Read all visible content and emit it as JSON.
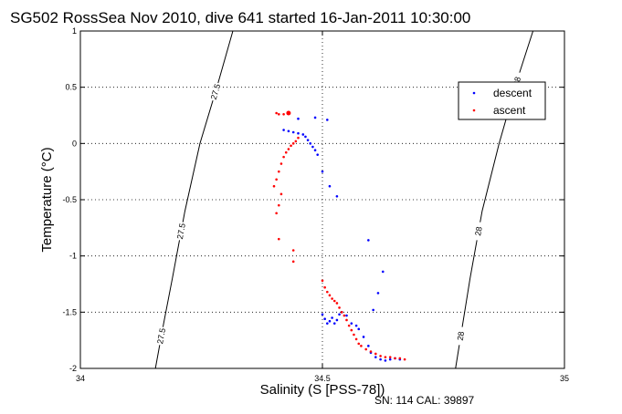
{
  "chart_data": {
    "type": "scatter",
    "title": "SG502 RossSea Nov 2010, dive 641 started 16-Jan-2011 10:30:00",
    "xlabel": "Salinity (S [PSS-78])",
    "ylabel": "Temperature (°C)",
    "xlim": [
      34,
      35
    ],
    "ylim": [
      -2,
      1
    ],
    "xticks": [
      "34",
      "34.5",
      "35"
    ],
    "yticks": [
      "-2",
      "-1.5",
      "-1",
      "-0.5",
      "0",
      "0.5",
      "1"
    ],
    "grid": "dotted",
    "legend": "top-right",
    "footnote": "SN: 114  CAL: 39897",
    "contour_labels": [
      "27.5",
      "28"
    ],
    "contours": [
      {
        "level": "27.5",
        "points": [
          [
            34.155,
            -2
          ],
          [
            34.172,
            -1.6
          ],
          [
            34.19,
            -1.2
          ],
          [
            34.216,
            -0.6
          ],
          [
            34.247,
            0
          ],
          [
            34.282,
            0.5
          ],
          [
            34.315,
            1
          ]
        ]
      },
      {
        "level": "28",
        "points": [
          [
            34.775,
            -2
          ],
          [
            34.79,
            -1.6
          ],
          [
            34.805,
            -1.2
          ],
          [
            34.83,
            -0.6
          ],
          [
            34.865,
            0
          ],
          [
            34.905,
            0.6
          ],
          [
            34.935,
            1
          ]
        ]
      }
    ],
    "series": [
      {
        "name": "descent",
        "color": "#0000ff",
        "points": [
          [
            34.42,
            0.12
          ],
          [
            34.43,
            0.11
          ],
          [
            34.44,
            0.1
          ],
          [
            34.45,
            0.09
          ],
          [
            34.46,
            0.08
          ],
          [
            34.465,
            0.06
          ],
          [
            34.47,
            0.03
          ],
          [
            34.475,
            0.0
          ],
          [
            34.48,
            -0.03
          ],
          [
            34.485,
            -0.06
          ],
          [
            34.49,
            -0.1
          ],
          [
            34.45,
            0.22
          ],
          [
            34.485,
            0.23
          ],
          [
            34.51,
            0.21
          ],
          [
            34.5,
            -0.25
          ],
          [
            34.515,
            -0.38
          ],
          [
            34.53,
            -0.47
          ],
          [
            34.595,
            -0.86
          ],
          [
            34.625,
            -1.14
          ],
          [
            34.615,
            -1.33
          ],
          [
            34.605,
            -1.48
          ],
          [
            34.5,
            -1.52
          ],
          [
            34.505,
            -1.56
          ],
          [
            34.51,
            -1.6
          ],
          [
            34.515,
            -1.58
          ],
          [
            34.52,
            -1.55
          ],
          [
            34.525,
            -1.6
          ],
          [
            34.53,
            -1.57
          ],
          [
            34.535,
            -1.52
          ],
          [
            34.54,
            -1.5
          ],
          [
            34.55,
            -1.53
          ],
          [
            34.56,
            -1.6
          ],
          [
            34.57,
            -1.62
          ],
          [
            34.575,
            -1.65
          ],
          [
            34.585,
            -1.72
          ],
          [
            34.595,
            -1.8
          ],
          [
            34.6,
            -1.86
          ],
          [
            34.61,
            -1.9
          ],
          [
            34.62,
            -1.92
          ],
          [
            34.63,
            -1.93
          ],
          [
            34.64,
            -1.92
          ],
          [
            34.65,
            -1.91
          ],
          [
            34.66,
            -1.92
          ]
        ]
      },
      {
        "name": "ascent",
        "color": "#ff0000",
        "points": [
          [
            34.43,
            0.27
          ],
          [
            34.42,
            0.26
          ],
          [
            34.41,
            0.26
          ],
          [
            34.405,
            0.27
          ],
          [
            34.45,
            0.05
          ],
          [
            34.445,
            0.02
          ],
          [
            34.44,
            0.0
          ],
          [
            34.435,
            -0.02
          ],
          [
            34.43,
            -0.05
          ],
          [
            34.425,
            -0.08
          ],
          [
            34.42,
            -0.12
          ],
          [
            34.415,
            -0.18
          ],
          [
            34.41,
            -0.25
          ],
          [
            34.405,
            -0.32
          ],
          [
            34.4,
            -0.38
          ],
          [
            34.415,
            -0.45
          ],
          [
            34.41,
            -0.55
          ],
          [
            34.405,
            -0.62
          ],
          [
            34.41,
            -0.85
          ],
          [
            34.44,
            -0.95
          ],
          [
            34.44,
            -1.05
          ],
          [
            34.5,
            -1.22
          ],
          [
            34.505,
            -1.28
          ],
          [
            34.51,
            -1.32
          ],
          [
            34.515,
            -1.35
          ],
          [
            34.52,
            -1.38
          ],
          [
            34.525,
            -1.4
          ],
          [
            34.53,
            -1.42
          ],
          [
            34.535,
            -1.46
          ],
          [
            34.54,
            -1.5
          ],
          [
            34.545,
            -1.53
          ],
          [
            34.55,
            -1.57
          ],
          [
            34.555,
            -1.62
          ],
          [
            34.56,
            -1.66
          ],
          [
            34.565,
            -1.7
          ],
          [
            34.57,
            -1.74
          ],
          [
            34.575,
            -1.78
          ],
          [
            34.58,
            -1.8
          ],
          [
            34.59,
            -1.83
          ],
          [
            34.6,
            -1.85
          ],
          [
            34.61,
            -1.87
          ],
          [
            34.62,
            -1.89
          ],
          [
            34.63,
            -1.9
          ],
          [
            34.64,
            -1.9
          ],
          [
            34.65,
            -1.91
          ],
          [
            34.66,
            -1.91
          ],
          [
            34.67,
            -1.92
          ]
        ]
      }
    ]
  }
}
